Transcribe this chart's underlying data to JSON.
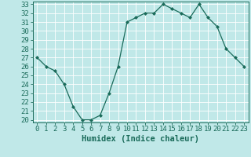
{
  "x": [
    0,
    1,
    2,
    3,
    4,
    5,
    6,
    7,
    8,
    9,
    10,
    11,
    12,
    13,
    14,
    15,
    16,
    17,
    18,
    19,
    20,
    21,
    22,
    23
  ],
  "y": [
    27,
    26,
    25.5,
    24,
    21.5,
    20,
    20,
    20.5,
    23,
    26,
    31,
    31.5,
    32,
    32,
    33,
    32.5,
    32,
    31.5,
    33,
    31.5,
    30.5,
    28,
    27,
    26
  ],
  "line_color": "#1a6b5a",
  "marker_color": "#1a6b5a",
  "bg_color": "#c0e8e8",
  "grid_color": "#ffffff",
  "xlabel": "Humidex (Indice chaleur)",
  "ylim": [
    20,
    33
  ],
  "xlim": [
    -0.5,
    23.5
  ],
  "yticks": [
    20,
    21,
    22,
    23,
    24,
    25,
    26,
    27,
    28,
    29,
    30,
    31,
    32,
    33
  ],
  "xticks": [
    0,
    1,
    2,
    3,
    4,
    5,
    6,
    7,
    8,
    9,
    10,
    11,
    12,
    13,
    14,
    15,
    16,
    17,
    18,
    19,
    20,
    21,
    22,
    23
  ],
  "xtick_labels": [
    "0",
    "1",
    "2",
    "3",
    "4",
    "5",
    "6",
    "7",
    "8",
    "9",
    "10",
    "11",
    "12",
    "13",
    "14",
    "15",
    "16",
    "17",
    "18",
    "19",
    "20",
    "21",
    "22",
    "23"
  ],
  "tick_color": "#1a6b5a",
  "label_fontsize": 7.5,
  "tick_fontsize": 6.5
}
